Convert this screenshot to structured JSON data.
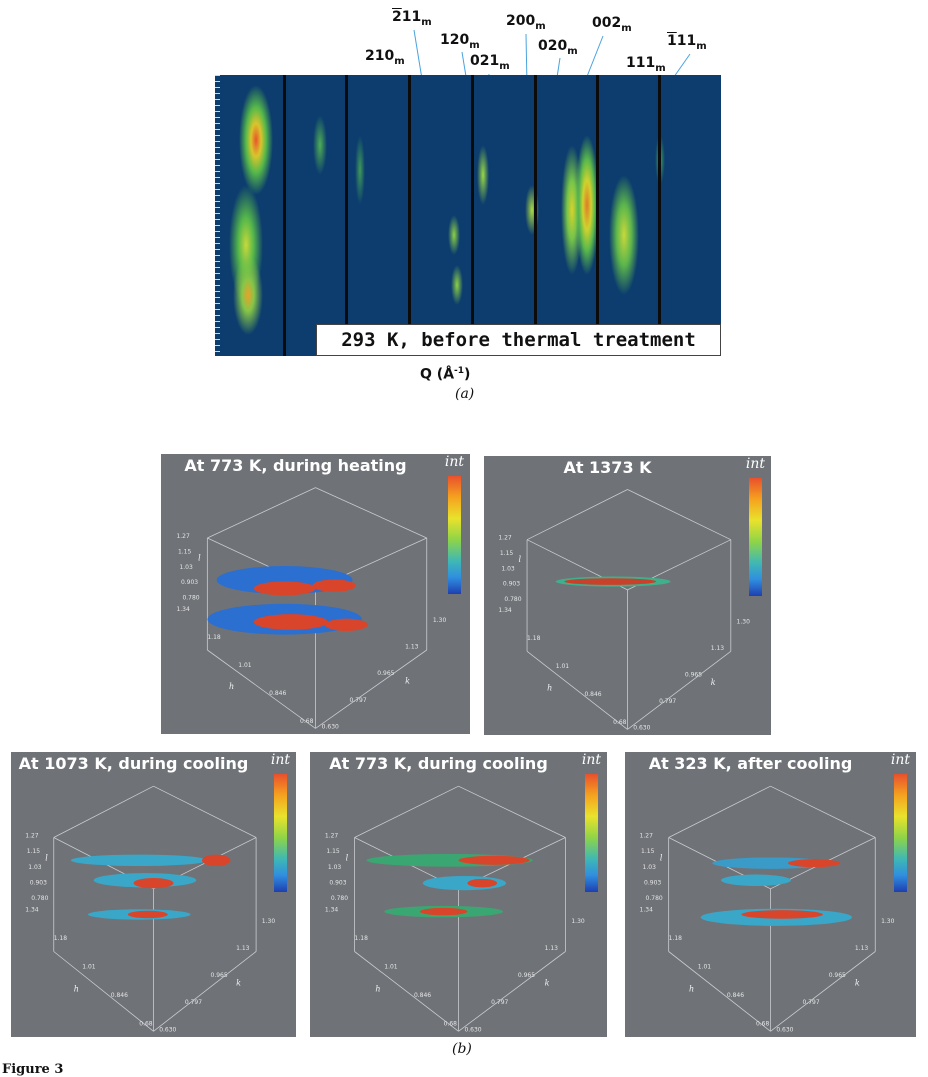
{
  "panel_a": {
    "caption": "293 K, before thermal treatment",
    "axis_label_q": "Q (",
    "axis_label_unit": "Å",
    "axis_label_exp": "-1",
    "axis_label_close": ")",
    "tag": "(a)",
    "peaks": [
      {
        "id": "210",
        "sub": "m",
        "bar": false
      },
      {
        "id": "211",
        "sub": "m",
        "bar": true,
        "bar_text": "2",
        "rest": "11"
      },
      {
        "id": "120",
        "sub": "m",
        "bar": false
      },
      {
        "id": "021",
        "sub": "m",
        "bar": false
      },
      {
        "id": "200",
        "sub": "m",
        "bar": false
      },
      {
        "id": "020",
        "sub": "m",
        "bar": false
      },
      {
        "id": "002",
        "sub": "m",
        "bar": false
      },
      {
        "id": "111",
        "sub": "m",
        "bar": false
      },
      {
        "id": "111",
        "sub": "m",
        "bar": true,
        "bar_text": "1",
        "rest": "11"
      }
    ]
  },
  "panel_b": {
    "tag": "(b)",
    "colorbar_label": "int",
    "axis_names": {
      "l": "l",
      "h": "h",
      "k": "k"
    },
    "axis_ticks": {
      "l": [
        "1.27",
        "1.15",
        "1.03",
        "0.903",
        "0.780"
      ],
      "h": [
        "1.34",
        "1.18",
        "1.01",
        "0.846",
        "0.68"
      ],
      "k": [
        "1.30",
        "1.13",
        "0.965",
        "0.797",
        "0.630"
      ]
    },
    "plots": [
      {
        "title": "At 773 K, during heating"
      },
      {
        "title": "At 1373 K"
      },
      {
        "title": "At 1073 K, during cooling"
      },
      {
        "title": "At 773 K, during cooling"
      },
      {
        "title": "At 323 K, after cooling"
      }
    ]
  },
  "footer": {
    "label": "Figure 3"
  }
}
